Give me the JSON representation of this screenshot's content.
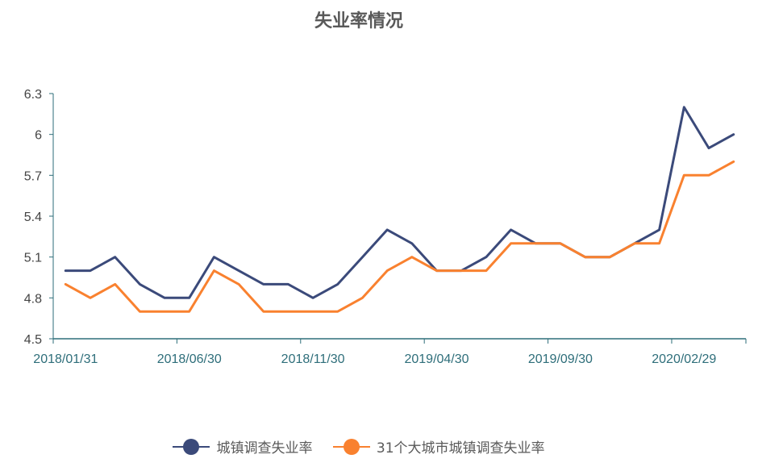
{
  "chart_data": {
    "type": "line",
    "title": "失业率情况",
    "x_tick_labels": [
      "2018/01/31",
      "2018/06/30",
      "2018/11/30",
      "2019/04/30",
      "2019/09/30",
      "2020/02/29"
    ],
    "x": [
      "2018/01/31",
      "2018/02/28",
      "2018/03/31",
      "2018/04/30",
      "2018/05/31",
      "2018/06/30",
      "2018/07/31",
      "2018/08/31",
      "2018/09/30",
      "2018/10/31",
      "2018/11/30",
      "2018/12/31",
      "2019/01/31",
      "2019/02/28",
      "2019/03/31",
      "2019/04/30",
      "2019/05/31",
      "2019/06/30",
      "2019/07/31",
      "2019/08/31",
      "2019/09/30",
      "2019/10/31",
      "2019/11/30",
      "2019/12/31",
      "2020/01/31",
      "2020/02/29",
      "2020/03/31",
      "2020/04/30"
    ],
    "ylim": [
      4.5,
      6.3
    ],
    "y_ticks": [
      "4.5",
      "4.8",
      "5.1",
      "5.4",
      "5.7",
      "6",
      "6.3"
    ],
    "series": [
      {
        "name": "城镇调查失业率",
        "color": "#3b4a7a",
        "values": [
          5.0,
          5.0,
          5.1,
          4.9,
          4.8,
          4.8,
          5.1,
          5.0,
          4.9,
          4.9,
          4.8,
          4.9,
          5.1,
          5.3,
          5.2,
          5.0,
          5.0,
          5.1,
          5.3,
          5.2,
          5.2,
          5.1,
          5.1,
          5.2,
          5.3,
          6.2,
          5.9,
          6.0
        ]
      },
      {
        "name": "31个大城市城镇调查失业率",
        "color": "#f9812f",
        "values": [
          4.9,
          4.8,
          4.9,
          4.7,
          4.7,
          4.7,
          5.0,
          4.9,
          4.7,
          4.7,
          4.7,
          4.7,
          4.8,
          5.0,
          5.1,
          5.0,
          5.0,
          5.0,
          5.2,
          5.2,
          5.2,
          5.1,
          5.1,
          5.2,
          5.2,
          5.7,
          5.7,
          5.8
        ]
      }
    ],
    "legend_position": "bottom",
    "grid": false
  }
}
